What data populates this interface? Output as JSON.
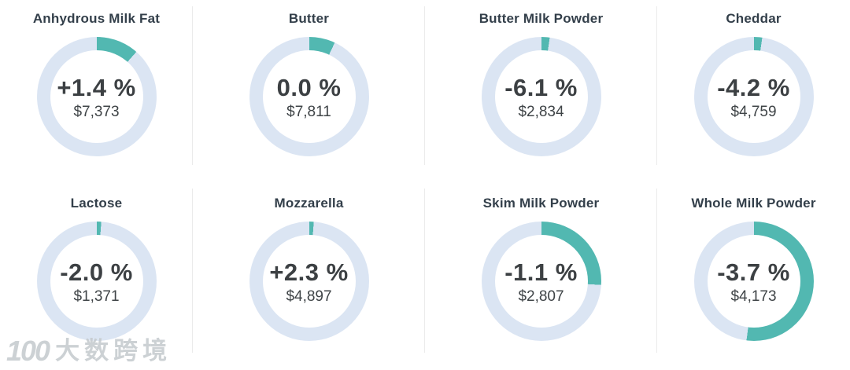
{
  "colors": {
    "arc": "#52b8b1",
    "ring": "#dbe5f3",
    "title": "#333f4a",
    "change": "#3c4043",
    "price": "#3f4447",
    "divider": "#ebebeb",
    "watermark": "#c4c9cd",
    "bg": "#ffffff"
  },
  "cards": [
    {
      "title": "Anhydrous Milk Fat",
      "change": "+1.4 %",
      "price": "$7,373",
      "arc_percent": 11.5
    },
    {
      "title": "Butter",
      "change": "0.0 %",
      "price": "$7,811",
      "arc_percent": 7
    },
    {
      "title": "Butter Milk Powder",
      "change": "-6.1 %",
      "price": "$2,834",
      "arc_percent": 2.2
    },
    {
      "title": "Cheddar",
      "change": "-4.2 %",
      "price": "$4,759",
      "arc_percent": 2.2
    },
    {
      "title": "Lactose",
      "change": "-2.0 %",
      "price": "$1,371",
      "arc_percent": 1.2
    },
    {
      "title": "Mozzarella",
      "change": "+2.3 %",
      "price": "$4,897",
      "arc_percent": 1.2
    },
    {
      "title": "Skim Milk Powder",
      "change": "-1.1 %",
      "price": "$2,807",
      "arc_percent": 26
    },
    {
      "title": "Whole Milk Powder",
      "change": "-3.7 %",
      "price": "$4,173",
      "arc_percent": 52
    }
  ],
  "watermark": {
    "logo": "100",
    "text": "大数跨境"
  },
  "chart_data": [
    {
      "type": "pie",
      "title": "Anhydrous Milk Fat",
      "labels": [
        "filled",
        "remainder"
      ],
      "values": [
        11.5,
        88.5
      ],
      "center_text": [
        "+1.4 %",
        "$7,373"
      ],
      "change_percent": 1.4,
      "price_usd": 7373
    },
    {
      "type": "pie",
      "title": "Butter",
      "labels": [
        "filled",
        "remainder"
      ],
      "values": [
        7,
        93
      ],
      "center_text": [
        "0.0 %",
        "$7,811"
      ],
      "change_percent": 0.0,
      "price_usd": 7811
    },
    {
      "type": "pie",
      "title": "Butter Milk Powder",
      "labels": [
        "filled",
        "remainder"
      ],
      "values": [
        2.2,
        97.8
      ],
      "center_text": [
        "-6.1 %",
        "$2,834"
      ],
      "change_percent": -6.1,
      "price_usd": 2834
    },
    {
      "type": "pie",
      "title": "Cheddar",
      "labels": [
        "filled",
        "remainder"
      ],
      "values": [
        2.2,
        97.8
      ],
      "center_text": [
        "-4.2 %",
        "$4,759"
      ],
      "change_percent": -4.2,
      "price_usd": 4759
    },
    {
      "type": "pie",
      "title": "Lactose",
      "labels": [
        "filled",
        "remainder"
      ],
      "values": [
        1.2,
        98.8
      ],
      "center_text": [
        "-2.0 %",
        "$1,371"
      ],
      "change_percent": -2.0,
      "price_usd": 1371
    },
    {
      "type": "pie",
      "title": "Mozzarella",
      "labels": [
        "filled",
        "remainder"
      ],
      "values": [
        1.2,
        98.8
      ],
      "center_text": [
        "+2.3 %",
        "$4,897"
      ],
      "change_percent": 2.3,
      "price_usd": 4897
    },
    {
      "type": "pie",
      "title": "Skim Milk Powder",
      "labels": [
        "filled",
        "remainder"
      ],
      "values": [
        26,
        74
      ],
      "center_text": [
        "-1.1 %",
        "$2,807"
      ],
      "change_percent": -1.1,
      "price_usd": 2807
    },
    {
      "type": "pie",
      "title": "Whole Milk Powder",
      "labels": [
        "filled",
        "remainder"
      ],
      "values": [
        52,
        48
      ],
      "center_text": [
        "-3.7 %",
        "$4,173"
      ],
      "change_percent": -3.7,
      "price_usd": 4173
    }
  ]
}
